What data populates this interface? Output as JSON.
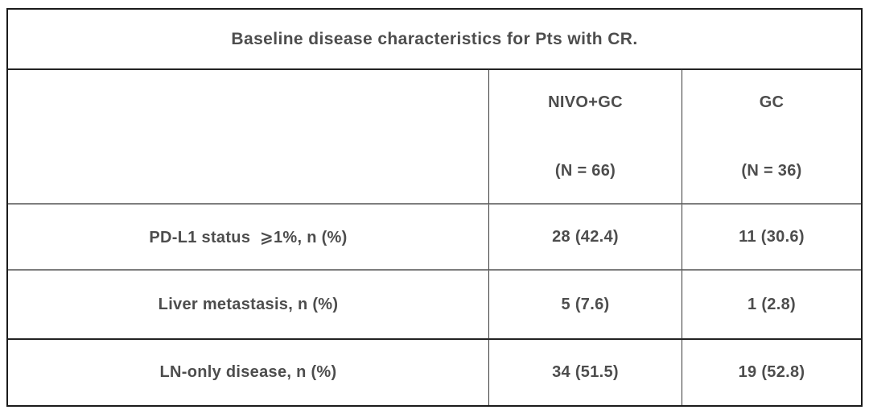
{
  "table": {
    "title": "Baseline disease characteristics for Pts with CR.",
    "columns": [
      {
        "name": "NIVO+GC",
        "n": "(N = 66)"
      },
      {
        "name": "GC",
        "n": "(N = 36)"
      }
    ],
    "rows": [
      {
        "label": "PD-L1 status  ⩾1%, n (%)",
        "values": [
          "28 (42.4)",
          "11 (30.6)"
        ]
      },
      {
        "label": "Liver metastasis, n (%)",
        "values": [
          "5 (7.6)",
          "1 (2.8)"
        ]
      },
      {
        "label": "LN-only disease, n (%)",
        "values": [
          "34 (51.5)",
          "19 (52.8)"
        ]
      }
    ],
    "colors": {
      "text": "#4d4d4d",
      "border_outer": "#1b1b1b",
      "border_inner_gray": "#7e7e7e",
      "background": "#ffffff"
    }
  },
  "chart_data": {
    "type": "table",
    "title": "Baseline disease characteristics for Pts with CR.",
    "column_headers": [
      "",
      "NIVO+GC (N = 66)",
      "GC (N = 36)"
    ],
    "rows": [
      [
        "PD-L1 status ⩾1%, n (%)",
        "28 (42.4)",
        "11 (30.6)"
      ],
      [
        "Liver metastasis, n (%)",
        "5 (7.6)",
        "1 (2.8)"
      ],
      [
        "LN-only disease, n (%)",
        "34 (51.5)",
        "19 (52.8)"
      ]
    ]
  }
}
